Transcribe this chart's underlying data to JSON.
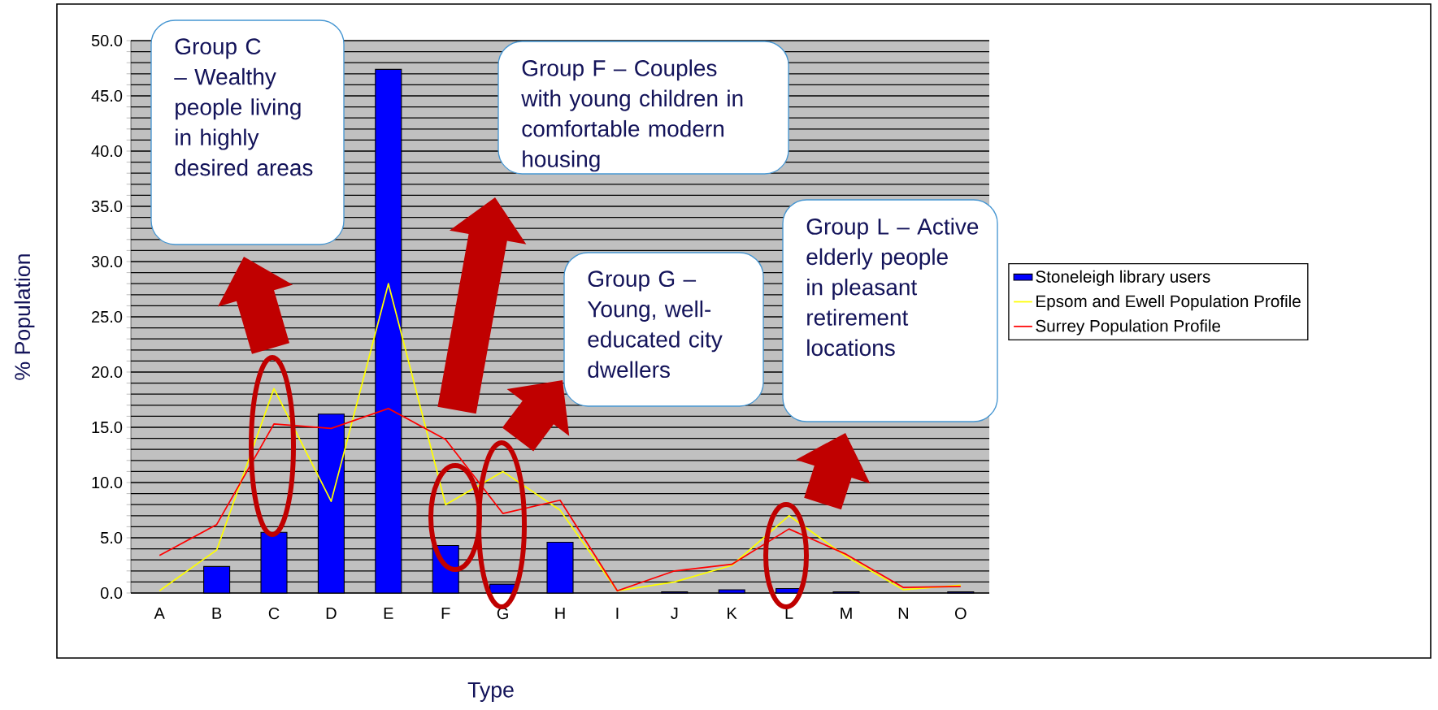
{
  "chart_data": {
    "type": "bar",
    "xlabel": "Type",
    "ylabel": "% Population",
    "categories": [
      "A",
      "B",
      "C",
      "D",
      "E",
      "F",
      "G",
      "H",
      "I",
      "J",
      "K",
      "L",
      "M",
      "N",
      "O"
    ],
    "series": [
      {
        "name": "Stoneleigh library users",
        "color": "#0000ff",
        "values": [
          null,
          2.4,
          5.5,
          16.2,
          47.4,
          4.3,
          0.8,
          4.6,
          null,
          0.1,
          0.3,
          0.4,
          0.1,
          null,
          0.1
        ]
      },
      {
        "name": "Epsom and Ewell Population Profile",
        "type": "line",
        "color": "#ffff00",
        "values": [
          0.2,
          3.9,
          18.5,
          8.3,
          28.0,
          8.0,
          11.0,
          7.5,
          0.2,
          1.0,
          2.5,
          7.0,
          3.3,
          0.3,
          0.7
        ]
      },
      {
        "name": "Surrey Population Profile",
        "type": "line",
        "color": "#ff0000",
        "values": [
          3.4,
          6.2,
          15.3,
          14.9,
          16.7,
          13.9,
          7.2,
          8.4,
          0.2,
          2.0,
          2.6,
          5.8,
          3.5,
          0.5,
          0.6
        ]
      }
    ],
    "ylim": [
      0,
      50
    ],
    "yticks": [
      {
        "value": 0,
        "label": "0.0"
      },
      {
        "value": 1,
        "label": null
      },
      {
        "value": 2,
        "label": null
      },
      {
        "value": 3,
        "label": null
      },
      {
        "value": 4,
        "label": null
      },
      {
        "value": 5,
        "label": "5.0"
      },
      {
        "value": 6,
        "label": null
      },
      {
        "value": 7,
        "label": null
      },
      {
        "value": 8,
        "label": null
      },
      {
        "value": 9,
        "label": null
      },
      {
        "value": 10,
        "label": "10.0"
      },
      {
        "value": 11,
        "label": null
      },
      {
        "value": 12,
        "label": null
      },
      {
        "value": 13,
        "label": null
      },
      {
        "value": 14,
        "label": null
      },
      {
        "value": 15,
        "label": "15.0"
      },
      {
        "value": 16,
        "label": null
      },
      {
        "value": 17,
        "label": null
      },
      {
        "value": 18,
        "label": null
      },
      {
        "value": 19,
        "label": null
      },
      {
        "value": 20,
        "label": "20.0"
      },
      {
        "value": 21,
        "label": null
      },
      {
        "value": 22,
        "label": null
      },
      {
        "value": 23,
        "label": null
      },
      {
        "value": 24,
        "label": null
      },
      {
        "value": 25,
        "label": "25.0"
      },
      {
        "value": 26,
        "label": null
      },
      {
        "value": 27,
        "label": null
      },
      {
        "value": 28,
        "label": null
      },
      {
        "value": 29,
        "label": null
      },
      {
        "value": 30,
        "label": "30.0"
      },
      {
        "value": 31,
        "label": null
      },
      {
        "value": 32,
        "label": null
      },
      {
        "value": 33,
        "label": null
      },
      {
        "value": 34,
        "label": null
      },
      {
        "value": 35,
        "label": "35.0"
      },
      {
        "value": 36,
        "label": null
      },
      {
        "value": 37,
        "label": null
      },
      {
        "value": 38,
        "label": null
      },
      {
        "value": 39,
        "label": null
      },
      {
        "value": 40,
        "label": "40.0"
      },
      {
        "value": 41,
        "label": null
      },
      {
        "value": 42,
        "label": null
      },
      {
        "value": 43,
        "label": null
      },
      {
        "value": 44,
        "label": null
      },
      {
        "value": 45,
        "label": "45.0"
      },
      {
        "value": 46,
        "label": null
      },
      {
        "value": 47,
        "label": null
      },
      {
        "value": 48,
        "label": null
      },
      {
        "value": 49,
        "label": null
      },
      {
        "value": 50,
        "label": "50.0"
      }
    ],
    "grid": "y",
    "legend": "right",
    "marker": "none",
    "line_style": "solid",
    "annotations": [
      "Group C – Wealthy people living in highly desired areas",
      "Group F – Couples with young children in comfortable modern housing",
      "Group G – Young, well-educated city dwellers",
      "Group L – Active elderly people in pleasant retirement locations"
    ]
  }
}
